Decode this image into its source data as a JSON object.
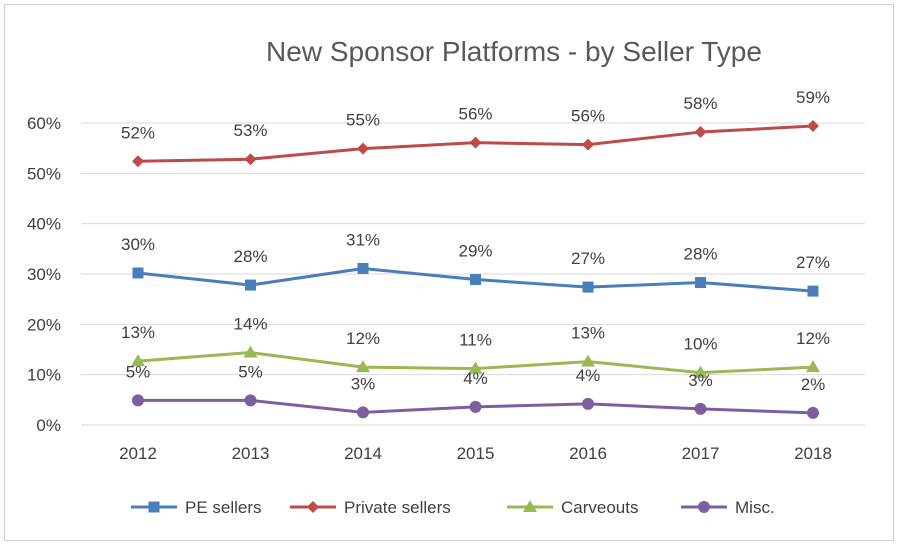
{
  "chart_data": {
    "type": "line",
    "title": "New Sponsor Platforms - by Seller Type",
    "xlabel": "",
    "ylabel": "",
    "categories": [
      "2012",
      "2013",
      "2014",
      "2015",
      "2016",
      "2017",
      "2018"
    ],
    "ylim": [
      0,
      0.6
    ],
    "yticks": [
      0,
      0.1,
      0.2,
      0.3,
      0.4,
      0.5,
      0.6
    ],
    "ytick_labels": [
      "0%",
      "10%",
      "20%",
      "30%",
      "40%",
      "50%",
      "60%"
    ],
    "grid": true,
    "legend_position": "bottom",
    "series": [
      {
        "name": "PE sellers",
        "color": "#4a7ebb",
        "marker": "square",
        "values": [
          0.302,
          0.278,
          0.311,
          0.289,
          0.274,
          0.283,
          0.266
        ],
        "labels": [
          "30%",
          "28%",
          "31%",
          "29%",
          "27%",
          "28%",
          "27%"
        ]
      },
      {
        "name": "Private sellers",
        "color": "#be4b48",
        "marker": "diamond",
        "values": [
          0.524,
          0.528,
          0.549,
          0.561,
          0.557,
          0.582,
          0.594
        ],
        "labels": [
          "52%",
          "53%",
          "55%",
          "56%",
          "56%",
          "58%",
          "59%"
        ]
      },
      {
        "name": "Carveouts",
        "color": "#98b954",
        "marker": "triangle",
        "values": [
          0.127,
          0.144,
          0.115,
          0.112,
          0.126,
          0.104,
          0.115
        ],
        "labels": [
          "13%",
          "14%",
          "12%",
          "11%",
          "13%",
          "10%",
          "12%"
        ]
      },
      {
        "name": "Misc.",
        "color": "#7d5fa0",
        "marker": "circle",
        "values": [
          0.049,
          0.049,
          0.025,
          0.036,
          0.042,
          0.032,
          0.024
        ],
        "labels": [
          "5%",
          "5%",
          "3%",
          "4%",
          "4%",
          "3%",
          "2%"
        ]
      }
    ]
  }
}
